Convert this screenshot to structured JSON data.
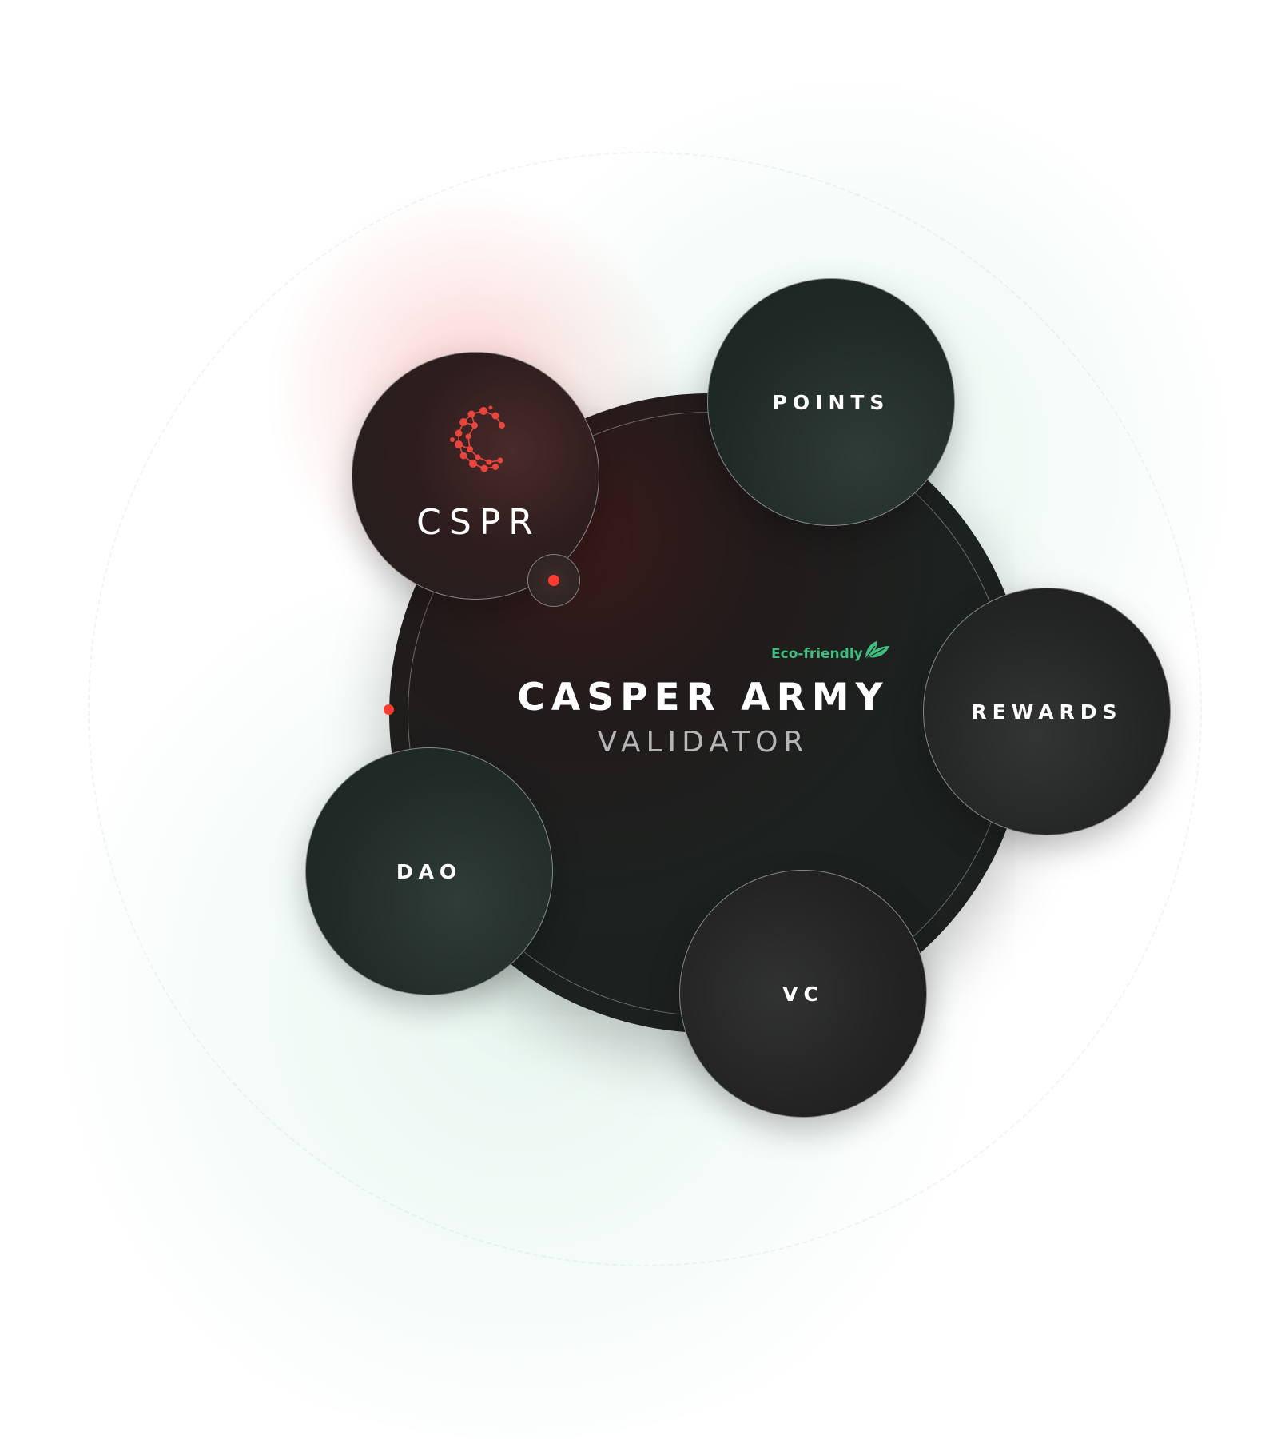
{
  "hub": {
    "badge": "Eco-friendly",
    "title": "CASPER ARMY",
    "subtitle": "VALIDATOR"
  },
  "nodes": {
    "cspr": "CSPR",
    "points": "POINTS",
    "rewards": "REWARDS",
    "dao": "DAO",
    "vc": "VC"
  },
  "colors": {
    "accent_red": "#ff3b30",
    "accent_green": "#3fbd7f",
    "circle_dark": "#1e2220"
  },
  "icons": {
    "logo": "casper-network-logo-icon",
    "badge": "leaf-icon"
  }
}
